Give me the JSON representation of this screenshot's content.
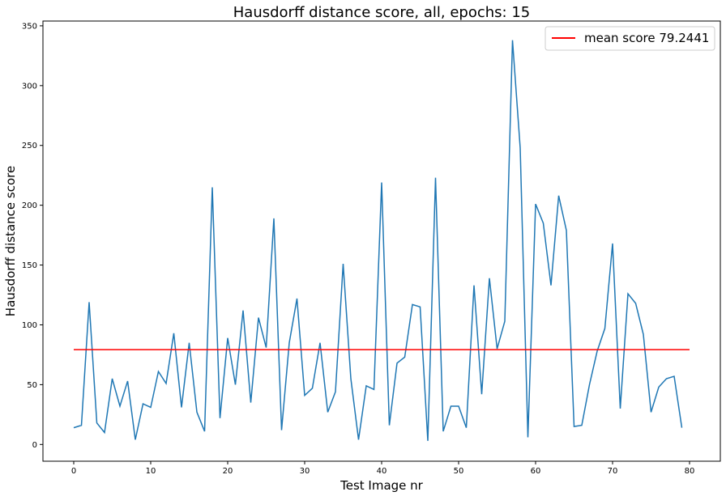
{
  "chart_data": {
    "type": "line",
    "title": "Hausdorff distance score, all, epochs: 15",
    "xlabel": "Test Image nr",
    "ylabel": "Hausdorff distance score",
    "xlim": [
      -4,
      84
    ],
    "ylim": [
      -14,
      354
    ],
    "xticks": [
      0,
      10,
      20,
      30,
      40,
      50,
      60,
      70,
      80
    ],
    "yticks": [
      0,
      50,
      100,
      150,
      200,
      250,
      300,
      350
    ],
    "grid": false,
    "legend_position": "top-right",
    "series": [
      {
        "name": "",
        "color": "#1f77b4",
        "values": [
          14,
          16,
          119,
          18,
          10,
          55,
          32,
          53,
          4,
          34,
          31,
          61,
          51,
          93,
          31,
          85,
          27,
          11,
          215,
          22,
          89,
          50,
          112,
          35,
          106,
          81,
          189,
          12,
          85,
          122,
          41,
          47,
          85,
          27,
          44,
          151,
          55,
          4,
          49,
          46,
          219,
          16,
          68,
          73,
          117,
          115,
          3,
          223,
          11,
          32,
          32,
          14,
          133,
          42,
          139,
          80,
          103,
          338,
          248,
          6,
          201,
          185,
          133,
          208,
          179,
          15,
          16,
          50,
          78,
          97,
          168,
          30,
          126,
          118,
          92,
          27,
          48,
          55,
          57,
          14
        ]
      },
      {
        "name": "mean score 79.2441",
        "color": "#ff0000",
        "x": [
          0,
          80
        ],
        "values": [
          79.2441,
          79.2441
        ]
      }
    ]
  }
}
